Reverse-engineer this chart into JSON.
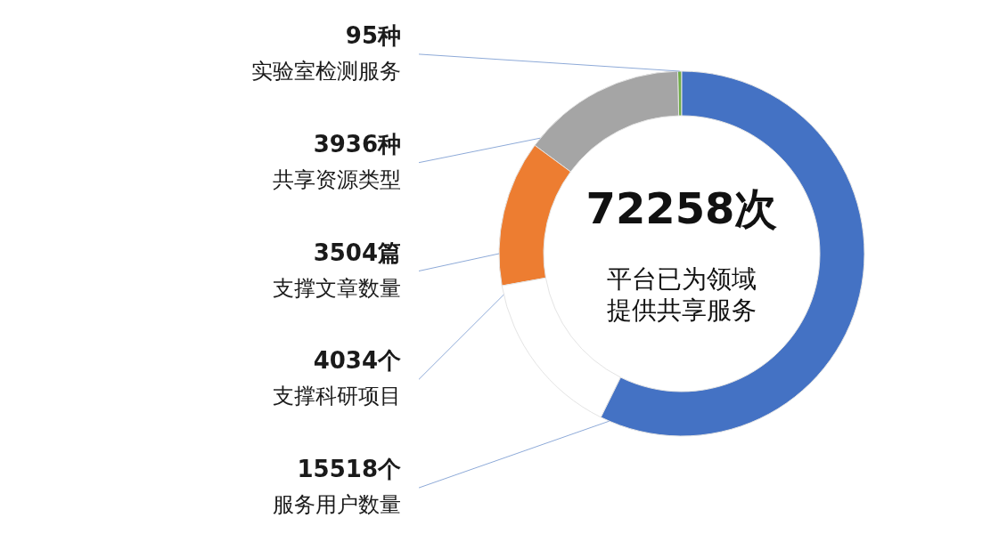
{
  "chart_data": {
    "type": "donut",
    "categories": [
      "实验室检测服务",
      "共享资源类型",
      "支撑文章数量",
      "支撑科研项目",
      "服务用户数量"
    ],
    "values": [
      95,
      3936,
      3504,
      4034,
      15518
    ],
    "value_labels": [
      "95种",
      "3936种",
      "3504篇",
      "4034个",
      "15518个"
    ],
    "colors": [
      "#70ad47",
      "#a5a5a5",
      "#ed7d31",
      "#ffffff",
      "#4472c4"
    ],
    "annotations": [
      "72258次",
      "平台已为领域",
      "提供共享服务"
    ],
    "legend": false
  }
}
